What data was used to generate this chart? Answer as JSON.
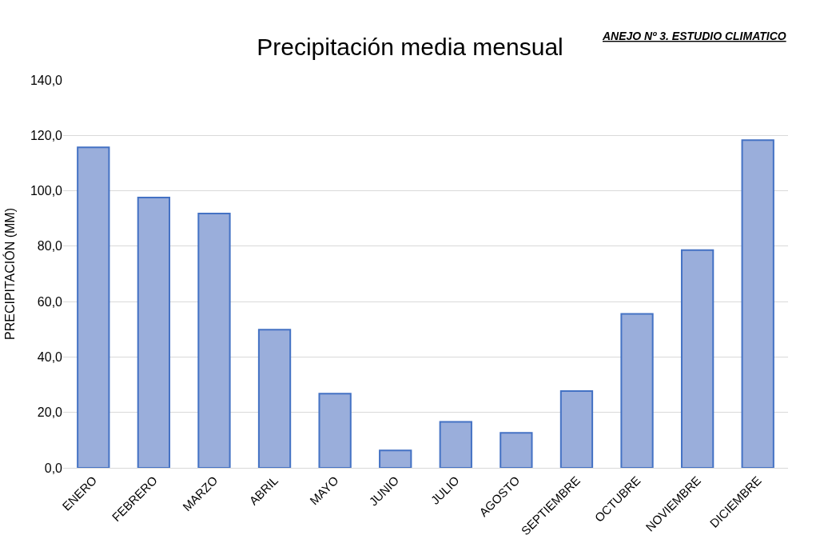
{
  "chart_data": {
    "type": "bar",
    "title": "Precipitación media mensual",
    "ylabel": "PRECIPITACIÓN (MM)",
    "annotations": [
      "ANEJO Nº 3. ESTUDIO CLIMATICO"
    ],
    "categories": [
      "ENERO",
      "FEBRERO",
      "MARZO",
      "ABRIL",
      "MAYO",
      "JUNIO",
      "JULIO",
      "AGOSTO",
      "SEPTIEMBRE",
      "OCTUBRE",
      "NOVIEMBRE",
      "DICIEMBRE"
    ],
    "values": [
      115.7,
      97.6,
      91.8,
      49.9,
      26.8,
      6.3,
      16.6,
      12.6,
      27.7,
      55.6,
      78.6,
      118.3
    ],
    "color": "#9aaedb",
    "ylim": [
      0,
      140
    ],
    "yticks": [
      {
        "value": 0,
        "label": "0,0"
      },
      {
        "value": 20,
        "label": "20,0"
      },
      {
        "value": 40,
        "label": "40,0"
      },
      {
        "value": 60,
        "label": "60,0"
      },
      {
        "value": 80,
        "label": "80,0"
      },
      {
        "value": 100,
        "label": "100,0"
      },
      {
        "value": 120,
        "label": "120,0"
      },
      {
        "value": 140,
        "label": "140,0"
      }
    ],
    "grid": "y",
    "legend": false
  }
}
